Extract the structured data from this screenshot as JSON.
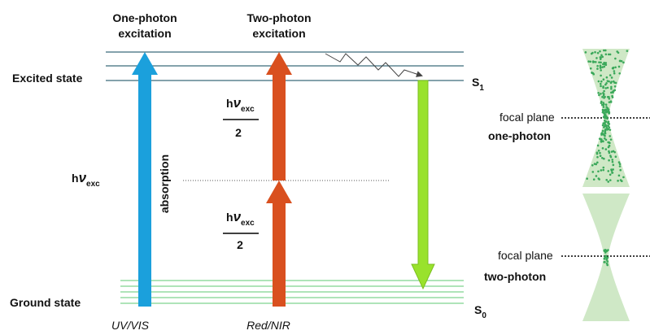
{
  "columns": [
    {
      "title": [
        "One-photon",
        "excitation"
      ],
      "label": "UV/VIS"
    },
    {
      "title": [
        "Two-photon",
        "excitation"
      ],
      "label": "Red/NIR"
    }
  ],
  "levels": {
    "excited": "Excited state",
    "ground": "Ground state",
    "s1": {
      "symbol": "S",
      "sub": "1"
    },
    "s0": {
      "symbol": "S",
      "sub": "0"
    }
  },
  "energy": {
    "h": "h",
    "nu": "ν",
    "sub": "exc",
    "half": "2"
  },
  "absorption": "absorption",
  "focus": [
    {
      "plane": "focal plane",
      "label": "one-photon"
    },
    {
      "plane": "focal plane",
      "label": "two-photon"
    }
  ]
}
